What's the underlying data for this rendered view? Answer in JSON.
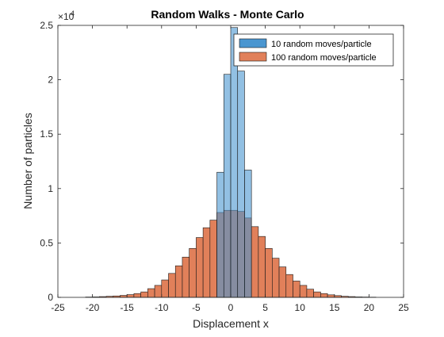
{
  "chart_data": {
    "type": "bar",
    "title": "Random Walks - Monte Carlo",
    "xlabel": "Displacement x",
    "ylabel": "Number of particles",
    "xlim": [
      -25,
      25
    ],
    "ylim": [
      0,
      25000
    ],
    "xticks": [
      "-25",
      "-20",
      "-15",
      "-10",
      "-5",
      "0",
      "5",
      "10",
      "15",
      "20",
      "25"
    ],
    "yticks": [
      "0",
      "0.5",
      "1",
      "1.5",
      "2",
      "2.5"
    ],
    "y_exponent": "×10",
    "y_exponent_power": "4",
    "legend_position": "top-right",
    "grid": false,
    "bin_width": 1,
    "series": [
      {
        "name": "10 random moves/particle",
        "color": "#4a96d0",
        "bin_left_edges": [
          -3,
          -2,
          -1,
          0,
          1,
          2,
          3
        ],
        "values": [
          0,
          11500,
          20500,
          24800,
          20800,
          11700,
          0
        ]
      },
      {
        "name": "100 random moves/particle",
        "color": "#e1805a",
        "bin_left_edges": [
          -21,
          -20,
          -19,
          -18,
          -17,
          -16,
          -15,
          -14,
          -13,
          -12,
          -11,
          -10,
          -9,
          -8,
          -7,
          -6,
          -5,
          -4,
          -3,
          -2,
          -1,
          0,
          1,
          2,
          3,
          4,
          5,
          6,
          7,
          8,
          9,
          10,
          11,
          12,
          13,
          14,
          15,
          16,
          17,
          18,
          19,
          20
        ],
        "values": [
          30,
          40,
          70,
          100,
          130,
          180,
          250,
          350,
          500,
          800,
          1100,
          1600,
          2200,
          2900,
          3700,
          4500,
          5500,
          6400,
          7100,
          7800,
          8000,
          8000,
          7900,
          7300,
          6500,
          5600,
          4500,
          3600,
          2800,
          2100,
          1500,
          1100,
          750,
          500,
          350,
          230,
          160,
          100,
          70,
          40,
          30,
          20
        ]
      }
    ]
  }
}
